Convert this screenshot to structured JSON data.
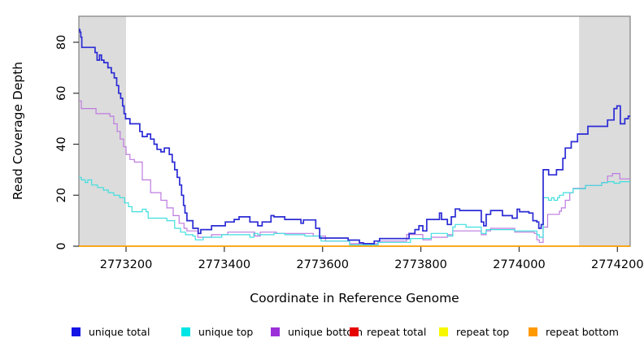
{
  "chart_data": {
    "type": "line",
    "subtype": "step",
    "title": "",
    "xlabel": "Coordinate in Reference Genome",
    "ylabel": "Read Coverage Depth",
    "x_domain": [
      2773104,
      2774226
    ],
    "y_domain": [
      0,
      90.2
    ],
    "x_ticks": [
      2773200,
      2773400,
      2773600,
      2773800,
      2774000,
      2774200
    ],
    "y_ticks": [
      0,
      20,
      40,
      60,
      80
    ],
    "grid": false,
    "legend_position": "bottom",
    "shade_color": "#dcdcdc",
    "shaded_regions": [
      {
        "x0": 2773104,
        "x1": 2773200
      },
      {
        "x0": 2774122,
        "x1": 2774226
      }
    ],
    "series": [
      {
        "name": "repeat total",
        "color": "#e60000",
        "line_color": "#e60000",
        "line_width": 1.2,
        "points": [
          [
            2773104,
            0
          ],
          [
            2774226,
            0
          ]
        ]
      },
      {
        "name": "repeat top",
        "color": "#f7f700",
        "line_color": "#f7f700",
        "line_width": 1.2,
        "points": [
          [
            2773104,
            0
          ],
          [
            2774226,
            0
          ]
        ]
      },
      {
        "name": "repeat bottom",
        "color": "#ff9900",
        "line_color": "#ffa200",
        "line_width": 1.6,
        "points": [
          [
            2773104,
            0
          ],
          [
            2774226,
            0
          ]
        ]
      },
      {
        "name": "unique bottom",
        "color": "#9b30d9",
        "line_color": "#bd7adf",
        "line_width": 1.2,
        "points": [
          [
            2773104,
            57
          ],
          [
            2773109,
            54
          ],
          [
            2773139,
            52
          ],
          [
            2773167,
            51
          ],
          [
            2773175,
            48
          ],
          [
            2773182,
            45
          ],
          [
            2773188,
            42
          ],
          [
            2773195,
            39
          ],
          [
            2773200,
            36
          ],
          [
            2773208,
            34
          ],
          [
            2773217,
            33
          ],
          [
            2773233,
            26
          ],
          [
            2773250,
            21
          ],
          [
            2773271,
            18
          ],
          [
            2773283,
            15
          ],
          [
            2773296,
            12
          ],
          [
            2773308,
            9
          ],
          [
            2773318,
            7
          ],
          [
            2773324,
            6
          ],
          [
            2773346,
            3.5
          ],
          [
            2773374,
            4.5
          ],
          [
            2773407,
            5.5
          ],
          [
            2773462,
            4
          ],
          [
            2773473,
            5.5
          ],
          [
            2773506,
            5
          ],
          [
            2773581,
            4
          ],
          [
            2773606,
            2
          ],
          [
            2773655,
            1
          ],
          [
            2773713,
            2
          ],
          [
            2773771,
            4.6
          ],
          [
            2773804,
            2.5
          ],
          [
            2773821,
            3.5
          ],
          [
            2773854,
            4.5
          ],
          [
            2773865,
            6
          ],
          [
            2773923,
            4.5
          ],
          [
            2773933,
            6
          ],
          [
            2773942,
            7
          ],
          [
            2773991,
            5.5
          ],
          [
            2774031,
            5
          ],
          [
            2774036,
            2.5
          ],
          [
            2774041,
            1.5
          ],
          [
            2774049,
            7.5
          ],
          [
            2774058,
            12.5
          ],
          [
            2774082,
            13.7
          ],
          [
            2774086,
            15
          ],
          [
            2774094,
            18
          ],
          [
            2774103,
            21
          ],
          [
            2774110,
            22.7
          ],
          [
            2774135,
            23.8
          ],
          [
            2774168,
            25
          ],
          [
            2774180,
            27.5
          ],
          [
            2774190,
            28.5
          ],
          [
            2774205,
            26.4
          ]
        ]
      },
      {
        "name": "unique top",
        "color": "#00e5e5",
        "line_color": "#3fdede",
        "line_width": 1.2,
        "points": [
          [
            2773104,
            27
          ],
          [
            2773109,
            26
          ],
          [
            2773117,
            25
          ],
          [
            2773122,
            26
          ],
          [
            2773130,
            24
          ],
          [
            2773142,
            23
          ],
          [
            2773154,
            22
          ],
          [
            2773164,
            21
          ],
          [
            2773175,
            20
          ],
          [
            2773187,
            19
          ],
          [
            2773197,
            17
          ],
          [
            2773205,
            15.5
          ],
          [
            2773212,
            13.5
          ],
          [
            2773233,
            14.5
          ],
          [
            2773241,
            13.5
          ],
          [
            2773245,
            11
          ],
          [
            2773283,
            10
          ],
          [
            2773299,
            7
          ],
          [
            2773311,
            5.5
          ],
          [
            2773321,
            4.5
          ],
          [
            2773336,
            4
          ],
          [
            2773341,
            2.5
          ],
          [
            2773357,
            3.5
          ],
          [
            2773395,
            4.5
          ],
          [
            2773452,
            3.5
          ],
          [
            2773460,
            5
          ],
          [
            2773468,
            4.5
          ],
          [
            2773501,
            5
          ],
          [
            2773523,
            4.5
          ],
          [
            2773564,
            4
          ],
          [
            2773597,
            2
          ],
          [
            2773655,
            0.5
          ],
          [
            2773713,
            1.5
          ],
          [
            2773779,
            3
          ],
          [
            2773821,
            5
          ],
          [
            2773854,
            4
          ],
          [
            2773865,
            7.5
          ],
          [
            2773870,
            8.5
          ],
          [
            2773892,
            7.5
          ],
          [
            2773923,
            5
          ],
          [
            2773933,
            6.5
          ],
          [
            2773991,
            6
          ],
          [
            2774036,
            4.5
          ],
          [
            2774041,
            3.5
          ],
          [
            2774049,
            19
          ],
          [
            2774060,
            18
          ],
          [
            2774066,
            19
          ],
          [
            2774071,
            18
          ],
          [
            2774078,
            19
          ],
          [
            2774082,
            20
          ],
          [
            2774090,
            21
          ],
          [
            2774110,
            22.5
          ],
          [
            2774135,
            23.8
          ],
          [
            2774168,
            24.9
          ],
          [
            2774180,
            25.3
          ],
          [
            2774193,
            24.7
          ],
          [
            2774205,
            25.3
          ]
        ]
      },
      {
        "name": "unique total",
        "color": "#1414e6",
        "line_color": "#2b2bd5",
        "line_width": 1.7,
        "points": [
          [
            2773104,
            85
          ],
          [
            2773106,
            84
          ],
          [
            2773108,
            82
          ],
          [
            2773110,
            78
          ],
          [
            2773137,
            76
          ],
          [
            2773141,
            73
          ],
          [
            2773146,
            75
          ],
          [
            2773150,
            73
          ],
          [
            2773155,
            72
          ],
          [
            2773163,
            70
          ],
          [
            2773170,
            68
          ],
          [
            2773176,
            66
          ],
          [
            2773181,
            63
          ],
          [
            2773185,
            60
          ],
          [
            2773189,
            58
          ],
          [
            2773193,
            55
          ],
          [
            2773196,
            52
          ],
          [
            2773199,
            50
          ],
          [
            2773208,
            48
          ],
          [
            2773228,
            45
          ],
          [
            2773233,
            43
          ],
          [
            2773243,
            44
          ],
          [
            2773250,
            42
          ],
          [
            2773257,
            40
          ],
          [
            2773263,
            38
          ],
          [
            2773271,
            37
          ],
          [
            2773278,
            38.5
          ],
          [
            2773288,
            36
          ],
          [
            2773294,
            33
          ],
          [
            2773299,
            30
          ],
          [
            2773304,
            27
          ],
          [
            2773309,
            24
          ],
          [
            2773313,
            20
          ],
          [
            2773317,
            16
          ],
          [
            2773320,
            13
          ],
          [
            2773324,
            10
          ],
          [
            2773336,
            7
          ],
          [
            2773347,
            5
          ],
          [
            2773352,
            6.5
          ],
          [
            2773374,
            8
          ],
          [
            2773402,
            9.5
          ],
          [
            2773420,
            10.5
          ],
          [
            2773430,
            11.5
          ],
          [
            2773452,
            9.5
          ],
          [
            2773468,
            8
          ],
          [
            2773477,
            9.5
          ],
          [
            2773495,
            12
          ],
          [
            2773501,
            11.5
          ],
          [
            2773523,
            10.5
          ],
          [
            2773556,
            9
          ],
          [
            2773561,
            10.3
          ],
          [
            2773586,
            7
          ],
          [
            2773594,
            3.2
          ],
          [
            2773652,
            2.4
          ],
          [
            2773675,
            1.3
          ],
          [
            2773683,
            1
          ],
          [
            2773705,
            2
          ],
          [
            2773716,
            3
          ],
          [
            2773776,
            5
          ],
          [
            2773788,
            6.5
          ],
          [
            2773796,
            8
          ],
          [
            2773804,
            6
          ],
          [
            2773812,
            10.5
          ],
          [
            2773838,
            13
          ],
          [
            2773842,
            10.5
          ],
          [
            2773854,
            8.5
          ],
          [
            2773862,
            11.5
          ],
          [
            2773870,
            14.6
          ],
          [
            2773879,
            14
          ],
          [
            2773923,
            9.5
          ],
          [
            2773928,
            8
          ],
          [
            2773933,
            12.5
          ],
          [
            2773942,
            14
          ],
          [
            2773966,
            12
          ],
          [
            2773986,
            11
          ],
          [
            2773996,
            14.5
          ],
          [
            2774001,
            13.5
          ],
          [
            2774020,
            13
          ],
          [
            2774028,
            10
          ],
          [
            2774036,
            9.5
          ],
          [
            2774040,
            7
          ],
          [
            2774045,
            8.5
          ],
          [
            2774049,
            30
          ],
          [
            2774060,
            28
          ],
          [
            2774076,
            30
          ],
          [
            2774089,
            34.5
          ],
          [
            2774094,
            38.5
          ],
          [
            2774106,
            41
          ],
          [
            2774119,
            44
          ],
          [
            2774140,
            47
          ],
          [
            2774180,
            49.5
          ],
          [
            2774193,
            54
          ],
          [
            2774199,
            55
          ],
          [
            2774206,
            48
          ],
          [
            2774215,
            50
          ],
          [
            2774222,
            51
          ]
        ]
      }
    ],
    "legend": [
      {
        "label": "unique total",
        "color": "#1414e6"
      },
      {
        "label": "unique top",
        "color": "#00e5e5"
      },
      {
        "label": "unique bottom",
        "color": "#9b30d9"
      },
      {
        "label": "repeat total",
        "color": "#e60000"
      },
      {
        "label": "repeat top",
        "color": "#f7f700"
      },
      {
        "label": "repeat bottom",
        "color": "#ff9900"
      }
    ]
  }
}
